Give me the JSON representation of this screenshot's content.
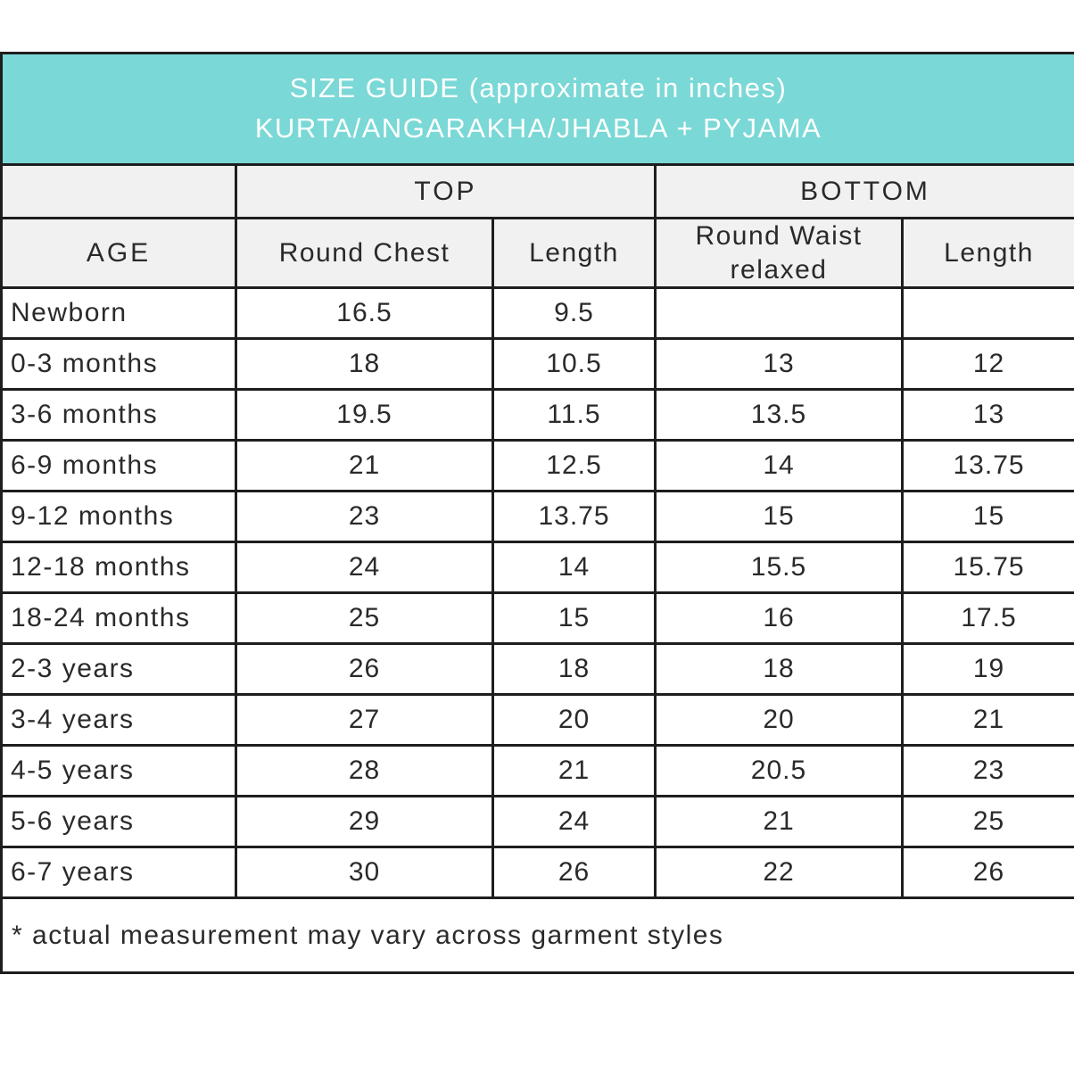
{
  "title": {
    "line1": "SIZE GUIDE (approximate in inches)",
    "line2": "KURTA/ANGARAKHA/JHABLA + PYJAMA"
  },
  "table": {
    "group_headers": {
      "age_spacer": "",
      "top": "TOP",
      "bottom": "BOTTOM"
    },
    "column_headers": [
      "AGE",
      "Round Chest",
      "Length",
      "Round Waist relaxed",
      "Length"
    ],
    "rows": [
      [
        "Newborn",
        "16.5",
        "9.5",
        "",
        ""
      ],
      [
        "0-3 months",
        "18",
        "10.5",
        "13",
        "12"
      ],
      [
        "3-6 months",
        "19.5",
        "11.5",
        "13.5",
        "13"
      ],
      [
        "6-9 months",
        "21",
        "12.5",
        "14",
        "13.75"
      ],
      [
        "9-12 months",
        "23",
        "13.75",
        "15",
        "15"
      ],
      [
        "12-18 months",
        "24",
        "14",
        "15.5",
        "15.75"
      ],
      [
        "18-24 months",
        "25",
        "15",
        "16",
        "17.5"
      ],
      [
        "2-3 years",
        "26",
        "18",
        "18",
        "19"
      ],
      [
        "3-4 years",
        "27",
        "20",
        "20",
        "21"
      ],
      [
        "4-5 years",
        "28",
        "21",
        "20.5",
        "23"
      ],
      [
        "5-6 years",
        "29",
        "24",
        "21",
        "25"
      ],
      [
        "6-7 years",
        "30",
        "26",
        "22",
        "26"
      ]
    ],
    "footnote": "* actual measurement may vary across garment styles"
  },
  "colors": {
    "title_bg": "#7ad8d6",
    "title_text": "#ffffff",
    "header_bg": "#f1f1f1",
    "border": "#1e1e1e",
    "text": "#2a2a2a"
  }
}
